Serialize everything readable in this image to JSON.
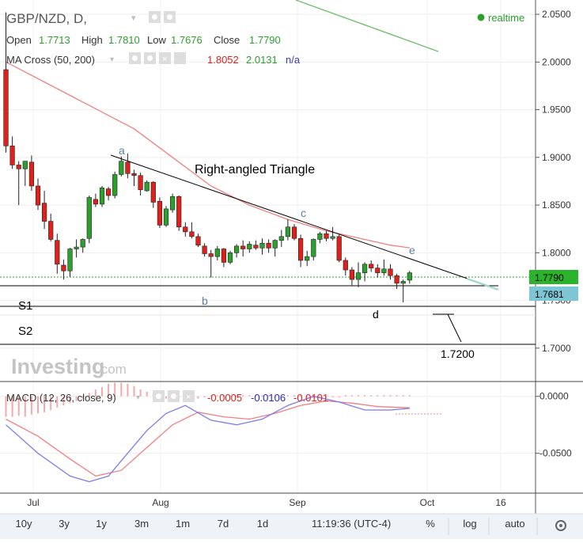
{
  "header": {
    "symbol": "GBP/NZD, D,",
    "ohlc_labels": [
      "Open",
      "High",
      "Low",
      "Close"
    ],
    "ohlc_values": [
      "1.7713",
      "1.7810",
      "1.7676",
      "1.7790"
    ],
    "ma_label": "MA Cross (50, 200)",
    "ma_values": [
      "1.8052",
      "2.0131",
      "n/a"
    ],
    "realtime": "realtime"
  },
  "macd_header": {
    "label": "MACD (12, 26, close, 9)",
    "values": [
      "-0.0005",
      "-0.0106",
      "-0.0101"
    ]
  },
  "annotations": {
    "title": "Right-angled Triangle",
    "points": [
      "a",
      "b",
      "c",
      "d",
      "e"
    ],
    "s1": "S1",
    "s2": "S2",
    "target": "1.7200"
  },
  "badges": {
    "last_close": "1.7790",
    "support": "1.7681"
  },
  "watermark": {
    "brand": "Investing",
    "suffix": ".com"
  },
  "footer": {
    "ranges": [
      "10y",
      "3y",
      "1y",
      "3m",
      "1m",
      "7d",
      "1d"
    ],
    "time": "11:19:36 (UTC-4)",
    "options": [
      "%",
      "log",
      "auto"
    ]
  },
  "chart_data": [
    {
      "type": "candlestick",
      "title": "GBP/NZD, D",
      "x_ticks": [
        "Jul",
        "Aug",
        "Sep",
        "Oct",
        "16"
      ],
      "ylim": [
        1.665,
        2.065
      ],
      "y_ticks": [
        "2.0500",
        "2.0000",
        "1.9500",
        "1.9000",
        "1.8500",
        "1.8000",
        "1.7500",
        "1.7000"
      ],
      "colors": {
        "up": "#2ca02c",
        "down": "#e0201b",
        "ma50": "#f08080",
        "ma200": "#6abf69"
      },
      "candles": [
        [
          1.992,
          2.052,
          1.905,
          1.912
        ],
        [
          1.912,
          1.922,
          1.888,
          1.892
        ],
        [
          1.892,
          1.896,
          1.85,
          1.888
        ],
        [
          1.888,
          1.895,
          1.87,
          1.896
        ],
        [
          1.895,
          1.902,
          1.865,
          1.87
        ],
        [
          1.87,
          1.878,
          1.845,
          1.85
        ],
        [
          1.852,
          1.865,
          1.825,
          1.833
        ],
        [
          1.833,
          1.841,
          1.812,
          1.814
        ],
        [
          1.813,
          1.82,
          1.778,
          1.788
        ],
        [
          1.787,
          1.793,
          1.772,
          1.781
        ],
        [
          1.781,
          1.805,
          1.775,
          1.804
        ],
        [
          1.804,
          1.814,
          1.795,
          1.806
        ],
        [
          1.806,
          1.815,
          1.8,
          1.814
        ],
        [
          1.815,
          1.86,
          1.81,
          1.858
        ],
        [
          1.856,
          1.862,
          1.848,
          1.851
        ],
        [
          1.851,
          1.87,
          1.848,
          1.868
        ],
        [
          1.867,
          1.869,
          1.855,
          1.86
        ],
        [
          1.86,
          1.885,
          1.857,
          1.882
        ],
        [
          1.882,
          1.901,
          1.88,
          1.896
        ],
        [
          1.895,
          1.904,
          1.878,
          1.883
        ],
        [
          1.883,
          1.887,
          1.87,
          1.881
        ],
        [
          1.881,
          1.884,
          1.86,
          1.866
        ],
        [
          1.865,
          1.876,
          1.864,
          1.874
        ],
        [
          1.874,
          1.875,
          1.847,
          1.853
        ],
        [
          1.854,
          1.858,
          1.826,
          1.829
        ],
        [
          1.829,
          1.849,
          1.827,
          1.846
        ],
        [
          1.845,
          1.862,
          1.842,
          1.859
        ],
        [
          1.859,
          1.86,
          1.823,
          1.827
        ],
        [
          1.827,
          1.832,
          1.817,
          1.822
        ],
        [
          1.822,
          1.832,
          1.815,
          1.817
        ],
        [
          1.817,
          1.82,
          1.806,
          1.808
        ],
        [
          1.807,
          1.81,
          1.796,
          1.799
        ],
        [
          1.799,
          1.803,
          1.774,
          1.796
        ],
        [
          1.796,
          1.807,
          1.792,
          1.804
        ],
        [
          1.804,
          1.805,
          1.785,
          1.79
        ],
        [
          1.79,
          1.802,
          1.788,
          1.8
        ],
        [
          1.8,
          1.809,
          1.795,
          1.807
        ],
        [
          1.807,
          1.813,
          1.796,
          1.804
        ],
        [
          1.804,
          1.812,
          1.8,
          1.809
        ],
        [
          1.808,
          1.813,
          1.803,
          1.805
        ],
        [
          1.805,
          1.815,
          1.798,
          1.81
        ],
        [
          1.81,
          1.814,
          1.8,
          1.805
        ],
        [
          1.805,
          1.814,
          1.796,
          1.813
        ],
        [
          1.813,
          1.824,
          1.806,
          1.817
        ],
        [
          1.817,
          1.835,
          1.813,
          1.827
        ],
        [
          1.827,
          1.83,
          1.813,
          1.815
        ],
        [
          1.815,
          1.819,
          1.785,
          1.792
        ],
        [
          1.792,
          1.802,
          1.786,
          1.796
        ],
        [
          1.796,
          1.815,
          1.792,
          1.814
        ],
        [
          1.814,
          1.822,
          1.81,
          1.82
        ],
        [
          1.82,
          1.823,
          1.812,
          1.815
        ],
        [
          1.815,
          1.827,
          1.813,
          1.817
        ],
        [
          1.817,
          1.819,
          1.79,
          1.792
        ],
        [
          1.792,
          1.795,
          1.776,
          1.782
        ],
        [
          1.782,
          1.785,
          1.766,
          1.772
        ],
        [
          1.772,
          1.79,
          1.764,
          1.779
        ],
        [
          1.779,
          1.79,
          1.77,
          1.788
        ],
        [
          1.788,
          1.792,
          1.78,
          1.784
        ],
        [
          1.784,
          1.788,
          1.774,
          1.779
        ],
        [
          1.779,
          1.793,
          1.776,
          1.783
        ],
        [
          1.783,
          1.788,
          1.772,
          1.776
        ],
        [
          1.776,
          1.778,
          1.762,
          1.768
        ],
        [
          1.768,
          1.772,
          1.748,
          1.77
        ],
        [
          1.7713,
          1.781,
          1.7676,
          1.779
        ]
      ],
      "ma50": [
        [
          0,
          2.0
        ],
        [
          10,
          1.965
        ],
        [
          20,
          1.93
        ],
        [
          26,
          1.9
        ],
        [
          32,
          1.87
        ],
        [
          38,
          1.85
        ],
        [
          44,
          1.835
        ],
        [
          50,
          1.823
        ],
        [
          56,
          1.814
        ],
        [
          60,
          1.808
        ],
        [
          63,
          1.8052
        ]
      ],
      "ma200": [
        [
          51,
          2.065
        ],
        [
          63,
          2.0131
        ]
      ],
      "triangle": {
        "upper": [
          [
            20,
            1.905
          ],
          [
            68,
            1.769
          ]
        ],
        "lower": [
          [
            5,
            1.772
          ],
          [
            68,
            1.772
          ]
        ]
      },
      "levels": {
        "S1": 1.747,
        "S2": 1.71,
        "target": 1.72
      }
    },
    {
      "type": "macd",
      "title": "MACD (12, 26, close, 9)",
      "ylim": [
        -0.085,
        0.013
      ],
      "y_ticks": [
        "0.0000",
        "-0.0500"
      ],
      "colors": {
        "macd": "#7b7bf0",
        "signal": "#f08080",
        "histogram": "#f4a9a9"
      },
      "macd": [
        [
          0,
          -0.025
        ],
        [
          5,
          -0.05
        ],
        [
          10,
          -0.07
        ],
        [
          13,
          -0.075
        ],
        [
          16,
          -0.07
        ],
        [
          19,
          -0.05
        ],
        [
          22,
          -0.03
        ],
        [
          25,
          -0.015
        ],
        [
          28,
          -0.008
        ],
        [
          32,
          -0.021
        ],
        [
          36,
          -0.025
        ],
        [
          40,
          -0.02
        ],
        [
          44,
          -0.008
        ],
        [
          48,
          0.0
        ],
        [
          52,
          -0.005
        ],
        [
          56,
          -0.012
        ],
        [
          60,
          -0.012
        ],
        [
          63,
          -0.0105
        ]
      ],
      "signal": [
        [
          0,
          -0.02
        ],
        [
          5,
          -0.035
        ],
        [
          10,
          -0.055
        ],
        [
          14,
          -0.07
        ],
        [
          18,
          -0.065
        ],
        [
          22,
          -0.045
        ],
        [
          26,
          -0.025
        ],
        [
          30,
          -0.014
        ],
        [
          34,
          -0.018
        ],
        [
          38,
          -0.02
        ],
        [
          42,
          -0.015
        ],
        [
          46,
          -0.008
        ],
        [
          50,
          -0.004
        ],
        [
          54,
          -0.006
        ],
        [
          58,
          -0.009
        ],
        [
          63,
          -0.01
        ]
      ],
      "histogram": [
        -0.018,
        -0.018,
        -0.017,
        -0.018,
        -0.016,
        -0.015,
        -0.014,
        -0.012,
        -0.01,
        -0.008,
        -0.006,
        -0.004,
        -0.002,
        0.003,
        0.006,
        0.008,
        0.011,
        0.012,
        0.012,
        0.011,
        0.009,
        0.006,
        0.004,
        0.002,
        -0.001,
        -0.002,
        -0.003,
        -0.002,
        -0.001,
        -0.001,
        -0.002,
        -0.001,
        0.001,
        0.001,
        0.001,
        0.001,
        0.001,
        0.001,
        0.001,
        0.001,
        0.001,
        0.001,
        0.001,
        0.001,
        0.001,
        0.001,
        0.001,
        -0.001,
        -0.001,
        -0.001,
        -0.001,
        -0.001,
        -0.001,
        0.001,
        0.001,
        0.001,
        0.001,
        0.001,
        0.001,
        0.001,
        0.001,
        0.001,
        0.001,
        0.001
      ]
    }
  ]
}
